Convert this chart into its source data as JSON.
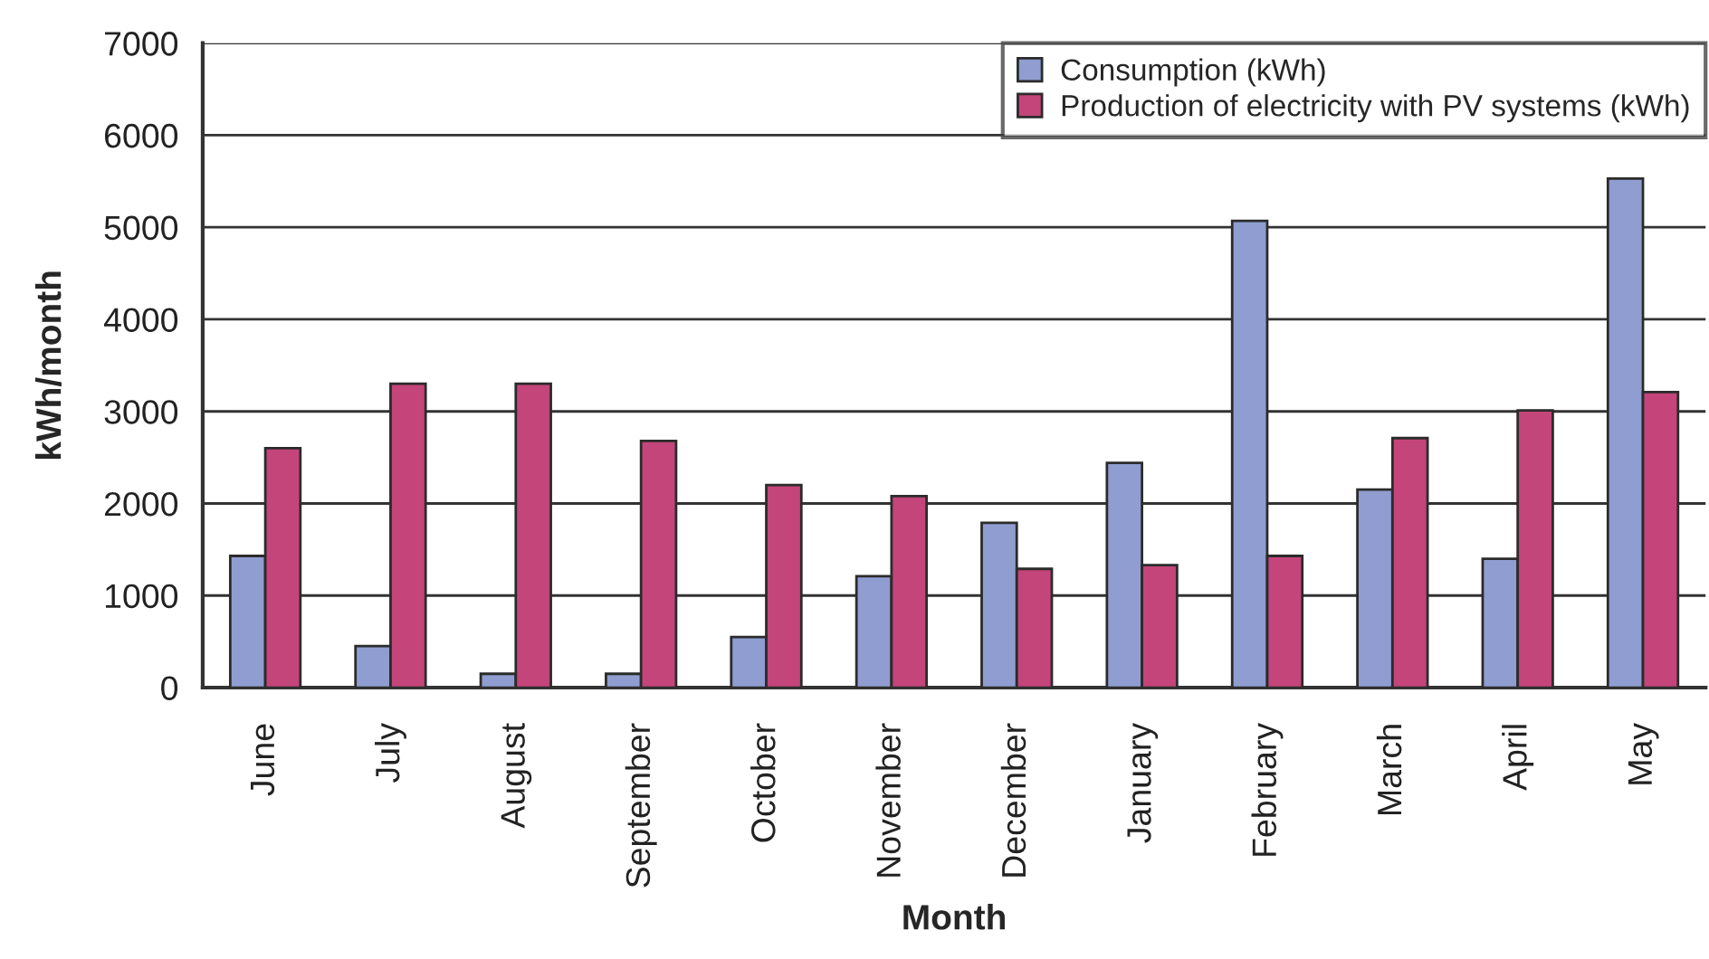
{
  "chart_data": {
    "type": "bar",
    "xlabel": "Month",
    "ylabel": "kWh/month",
    "categories": [
      "June",
      "July",
      "August",
      "September",
      "October",
      "November",
      "December",
      "January",
      "February",
      "March",
      "April",
      "May"
    ],
    "series": [
      {
        "name": "Consumption (kWh)",
        "color": "#8f9dd0",
        "values": [
          1430,
          450,
          150,
          150,
          550,
          1210,
          1790,
          2440,
          5070,
          2150,
          1400,
          5530
        ]
      },
      {
        "name": "Production of electricity with PV systems (kWh)",
        "color": "#c4457a",
        "values": [
          2600,
          3300,
          3300,
          2680,
          2200,
          2080,
          1290,
          1330,
          1430,
          2710,
          3010,
          3210
        ]
      }
    ],
    "ylim": [
      0,
      7000
    ],
    "yticks": [
      0,
      1000,
      2000,
      3000,
      4000,
      5000,
      6000,
      7000
    ],
    "grid": "y",
    "legend": "top right"
  }
}
